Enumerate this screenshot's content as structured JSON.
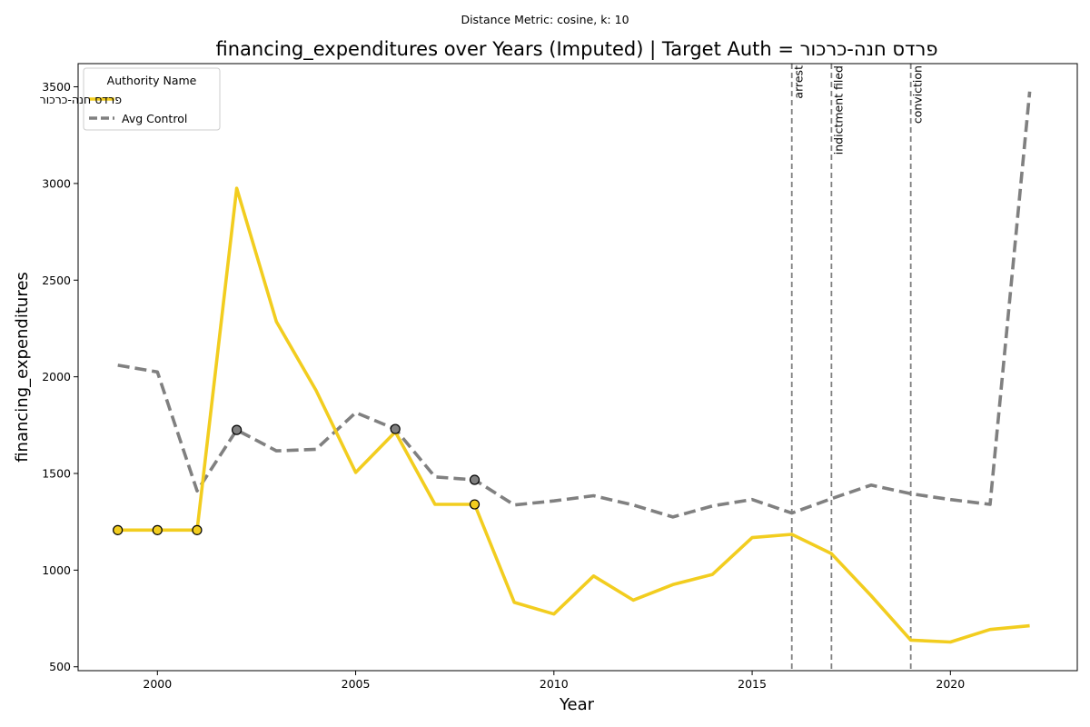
{
  "chart_data": {
    "type": "line",
    "subtitle": "Distance Metric: cosine, k: 10",
    "title": "financing_expenditures over Years (Imputed) | Target Auth = פרדס חנה-כרכור",
    "xlabel": "Year",
    "ylabel": "financing_expenditures",
    "xlim": [
      1998,
      2023.2
    ],
    "ylim": [
      480,
      3620
    ],
    "x_ticks": [
      2000,
      2005,
      2010,
      2015,
      2020
    ],
    "y_ticks": [
      500,
      1000,
      1500,
      2000,
      2500,
      3000,
      3500
    ],
    "grid": false,
    "legend": {
      "title": "Authority Name",
      "placement": "top-left"
    },
    "colors": {
      "target": "#f2cd1f",
      "control": "#808080",
      "event_line": "#808080"
    },
    "series": [
      {
        "name": "פרדס חנה-כרכור",
        "style": "solid",
        "x": [
          1999,
          2000,
          2001,
          2002,
          2003,
          2004,
          2005,
          2006,
          2007,
          2008,
          2009,
          2010,
          2011,
          2012,
          2013,
          2014,
          2015,
          2016,
          2017,
          2018,
          2019,
          2020,
          2021,
          2022
        ],
        "values": [
          1207,
          1207,
          1207,
          2975,
          2285,
          1930,
          1505,
          1715,
          1340,
          1340,
          833,
          773,
          970,
          845,
          925,
          978,
          1168,
          1185,
          1085,
          868,
          638,
          628,
          693,
          712
        ],
        "imputed_x": [
          1999,
          2000,
          2001,
          2008
        ]
      },
      {
        "name": "Avg Control",
        "style": "dashed",
        "x": [
          1999,
          2000,
          2001,
          2002,
          2003,
          2004,
          2005,
          2006,
          2007,
          2008,
          2009,
          2010,
          2011,
          2012,
          2013,
          2014,
          2015,
          2016,
          2017,
          2018,
          2019,
          2020,
          2021,
          2022
        ],
        "values": [
          2060,
          2025,
          1410,
          1725,
          1617,
          1625,
          1815,
          1730,
          1482,
          1467,
          1337,
          1358,
          1385,
          1337,
          1275,
          1332,
          1365,
          1295,
          1370,
          1440,
          1395,
          1365,
          1340,
          3475
        ],
        "imputed_x": [
          2002,
          2006,
          2008
        ]
      }
    ],
    "events": [
      {
        "x": 2016,
        "label": "arrest"
      },
      {
        "x": 2017,
        "label": "indictment filed"
      },
      {
        "x": 2019,
        "label": "conviction"
      }
    ]
  }
}
